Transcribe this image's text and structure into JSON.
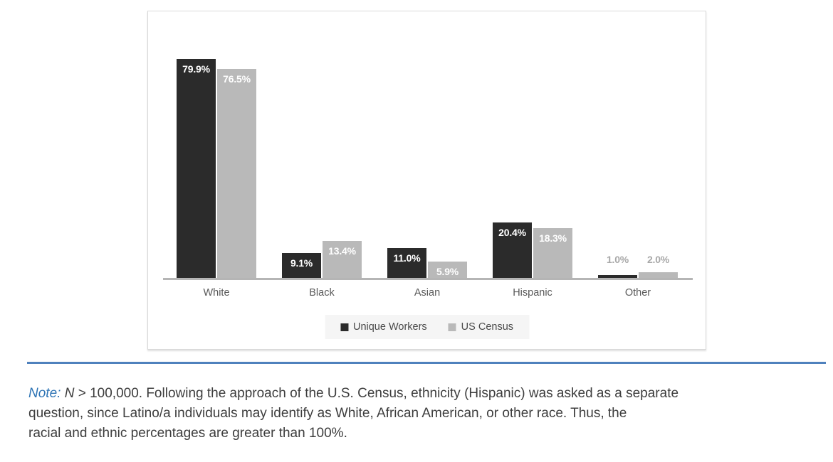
{
  "chart_data": {
    "type": "bar",
    "categories": [
      "White",
      "Black",
      "Asian",
      "Hispanic",
      "Other"
    ],
    "series": [
      {
        "name": "Unique Workers",
        "color": "#2b2b2b",
        "values": [
          79.9,
          9.1,
          11.0,
          20.4,
          1.0
        ],
        "labels": [
          "79.9%",
          "9.1%",
          "11.0%",
          "20.4%",
          "1.0%"
        ]
      },
      {
        "name": "US Census",
        "color": "#b9b9b9",
        "values": [
          76.5,
          13.4,
          5.9,
          18.3,
          2.0
        ],
        "labels": [
          "76.5%",
          "13.4%",
          "5.9%",
          "18.3%",
          "2.0%"
        ]
      }
    ],
    "title": "",
    "xlabel": "",
    "ylabel": "",
    "ylim": [
      0,
      100
    ],
    "grid": false,
    "legend_position": "bottom",
    "label_colors": {
      "inside": "#ffffff",
      "outside": "#a8a8a8"
    },
    "baseline_color": "#b5b5b5"
  },
  "figure": {
    "note": {
      "label": "Note:",
      "n": "N",
      "line1_rest": "> 100,000. Following the approach of the U.S. Census, ethnicity (Hispanic) was asked as a separate",
      "line2": "question, since Latino/a individuals may identify as White, African American, or other race. Thus, the",
      "line3": "racial and ethnic percentages are greater than 100%."
    }
  }
}
